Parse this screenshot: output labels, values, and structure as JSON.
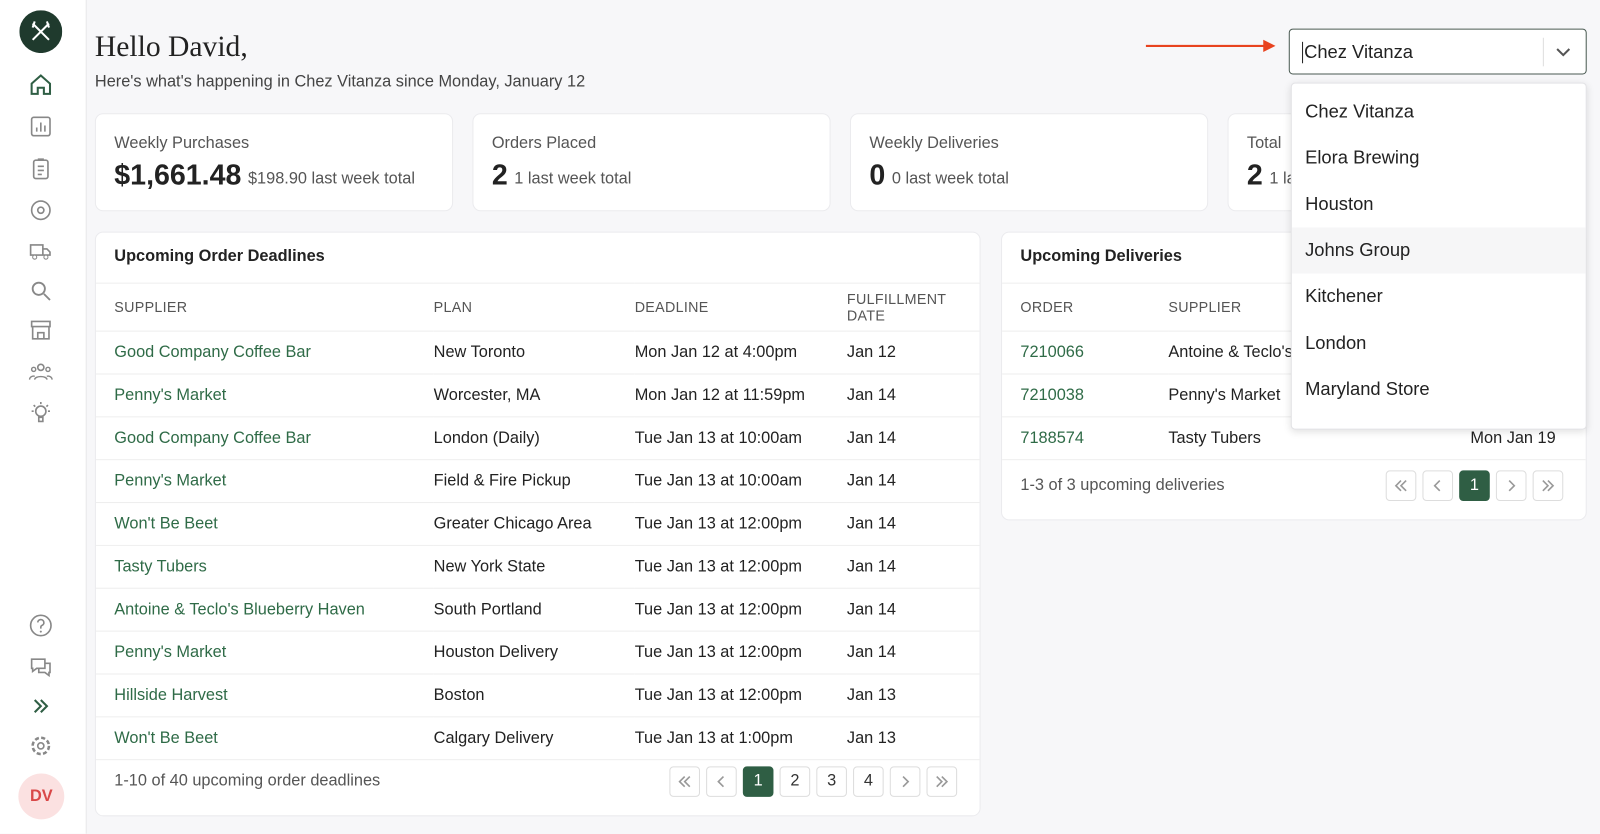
{
  "header": {
    "greeting": "Hello David,",
    "subtitle": "Here's what's happening in Chez Vitanza since Monday, January 12"
  },
  "location_select": {
    "value": "Chez Vitanza",
    "options": [
      "Chez Vitanza",
      "Elora Brewing",
      "Houston",
      "Johns Group",
      "Kitchener",
      "London",
      "Maryland Store"
    ]
  },
  "stats": [
    {
      "label": "Weekly Purchases",
      "value": "$1,661.48",
      "comparison": "$198.90 last week total"
    },
    {
      "label": "Orders Placed",
      "value": "2",
      "comparison": "1 last week total"
    },
    {
      "label": "Weekly Deliveries",
      "value": "0",
      "comparison": "0 last week total"
    },
    {
      "label": "Total",
      "value": "2",
      "comparison": "1 la"
    }
  ],
  "order_deadlines": {
    "title": "Upcoming Order Deadlines",
    "columns": [
      "SUPPLIER",
      "PLAN",
      "DEADLINE",
      "FULFILLMENT DATE"
    ],
    "rows": [
      [
        "Good Company Coffee Bar",
        "New Toronto",
        "Mon Jan 12 at 4:00pm",
        "Jan 12"
      ],
      [
        "Penny's Market",
        "Worcester, MA",
        "Mon Jan 12 at 11:59pm",
        "Jan 14"
      ],
      [
        "Good Company Coffee Bar",
        "London (Daily)",
        "Tue Jan 13 at 10:00am",
        "Jan 14"
      ],
      [
        "Penny's Market",
        "Field & Fire Pickup",
        "Tue Jan 13 at 10:00am",
        "Jan 14"
      ],
      [
        "Won't Be Beet",
        "Greater Chicago Area",
        "Tue Jan 13 at 12:00pm",
        "Jan 14"
      ],
      [
        "Tasty Tubers",
        "New York State",
        "Tue Jan 13 at 12:00pm",
        "Jan 14"
      ],
      [
        "Antoine & Teclo's Blueberry Haven",
        "South Portland",
        "Tue Jan 13 at 12:00pm",
        "Jan 14"
      ],
      [
        "Penny's Market",
        "Houston Delivery",
        "Tue Jan 13 at 12:00pm",
        "Jan 14"
      ],
      [
        "Hillside Harvest",
        "Boston",
        "Tue Jan 13 at 12:00pm",
        "Jan 13"
      ],
      [
        "Won't Be Beet",
        "Calgary Delivery",
        "Tue Jan 13 at 1:00pm",
        "Jan 13"
      ]
    ],
    "footer": "1-10 of 40 upcoming order deadlines",
    "pages": [
      1,
      2,
      3,
      4
    ]
  },
  "deliveries": {
    "title": "Upcoming Deliveries",
    "columns": [
      "ORDER",
      "SUPPLIER"
    ],
    "rows": [
      [
        "7210066",
        "Antoine & Teclo's I"
      ],
      [
        "7210038",
        "Penny's Market"
      ],
      [
        "7188574",
        "Tasty Tubers",
        "Mon Jan 19"
      ]
    ],
    "footer": "1-3 of 3 upcoming deliveries",
    "pages": [
      1
    ]
  },
  "user": {
    "initials": "DV"
  }
}
